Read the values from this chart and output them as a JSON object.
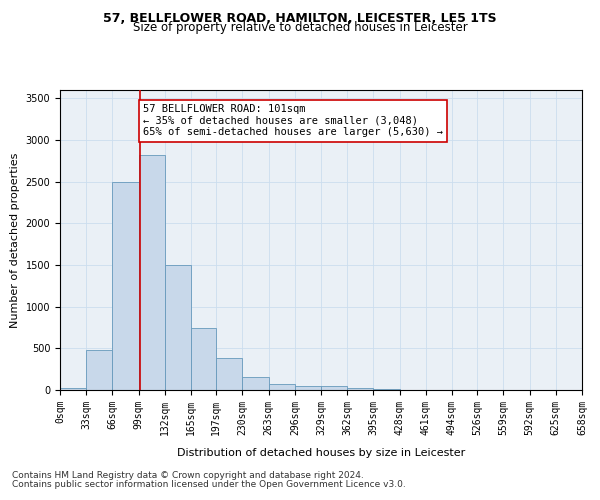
{
  "title_line1": "57, BELLFLOWER ROAD, HAMILTON, LEICESTER, LE5 1TS",
  "title_line2": "Size of property relative to detached houses in Leicester",
  "xlabel": "Distribution of detached houses by size in Leicester",
  "ylabel": "Number of detached properties",
  "footnote1": "Contains HM Land Registry data © Crown copyright and database right 2024.",
  "footnote2": "Contains public sector information licensed under the Open Government Licence v3.0.",
  "annotation_title": "57 BELLFLOWER ROAD: 101sqm",
  "annotation_line2": "← 35% of detached houses are smaller (3,048)",
  "annotation_line3": "65% of semi-detached houses are larger (5,630) →",
  "property_size_sqm": 101,
  "bin_edges": [
    0,
    33,
    66,
    99,
    132,
    165,
    197,
    230,
    263,
    296,
    329,
    362,
    395,
    428,
    461,
    494,
    526,
    559,
    592,
    625,
    658
  ],
  "bin_labels": [
    "0sqm",
    "33sqm",
    "66sqm",
    "99sqm",
    "132sqm",
    "165sqm",
    "197sqm",
    "230sqm",
    "263sqm",
    "296sqm",
    "329sqm",
    "362sqm",
    "395sqm",
    "428sqm",
    "461sqm",
    "494sqm",
    "526sqm",
    "559sqm",
    "592sqm",
    "625sqm",
    "658sqm"
  ],
  "bar_values": [
    20,
    480,
    2500,
    2820,
    1500,
    740,
    380,
    155,
    70,
    50,
    45,
    30,
    10,
    0,
    0,
    0,
    0,
    0,
    0,
    0
  ],
  "bar_facecolor": "#c8d8ea",
  "bar_edgecolor": "#6699bb",
  "vline_color": "#cc0000",
  "vline_x": 101,
  "annotation_box_edgecolor": "#cc0000",
  "annotation_box_facecolor": "#ffffff",
  "ylim": [
    0,
    3600
  ],
  "yticks": [
    0,
    500,
    1000,
    1500,
    2000,
    2500,
    3000,
    3500
  ],
  "grid_color": "#ccddee",
  "bg_color": "#eaf0f6",
  "title_fontsize": 9,
  "subtitle_fontsize": 8.5,
  "axis_label_fontsize": 8,
  "tick_fontsize": 7,
  "annotation_fontsize": 7.5,
  "footnote_fontsize": 6.5
}
